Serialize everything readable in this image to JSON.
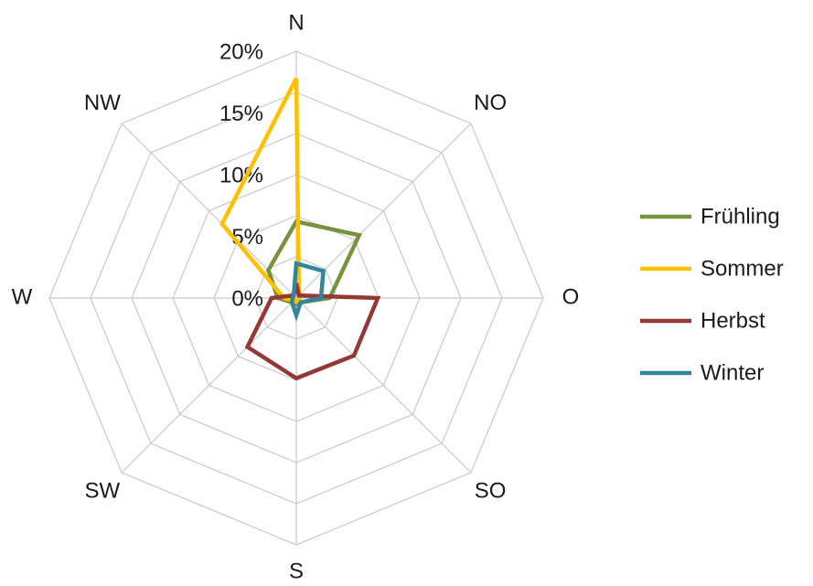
{
  "chart_data": {
    "type": "radar",
    "categories": [
      "N",
      "NO",
      "O",
      "SO",
      "S",
      "SW",
      "W",
      "NW"
    ],
    "r_ticks": [
      "0%",
      "5%",
      "10%",
      "15%",
      "20%"
    ],
    "r_range": [
      0,
      20
    ],
    "unit": "%",
    "grid": true,
    "legend_position": "right",
    "series": [
      {
        "name": "Frühling",
        "color": "#77933C",
        "values": [
          6.2,
          7.2,
          2.7,
          0.5,
          0.5,
          0.5,
          1.5,
          3.2
        ]
      },
      {
        "name": "Sommer",
        "color": "#FFC000",
        "values": [
          17.8,
          0.3,
          0.3,
          0.3,
          0.3,
          0.3,
          1.0,
          8.5
        ]
      },
      {
        "name": "Herbst",
        "color": "#953735",
        "values": [
          1.2,
          0.3,
          6.6,
          6.6,
          6.5,
          5.6,
          2.0,
          0.3
        ]
      },
      {
        "name": "Winter",
        "color": "#31859C",
        "values": [
          2.8,
          3.1,
          2.0,
          0.5,
          1.4,
          0.5,
          0.3,
          0.3
        ]
      }
    ]
  }
}
